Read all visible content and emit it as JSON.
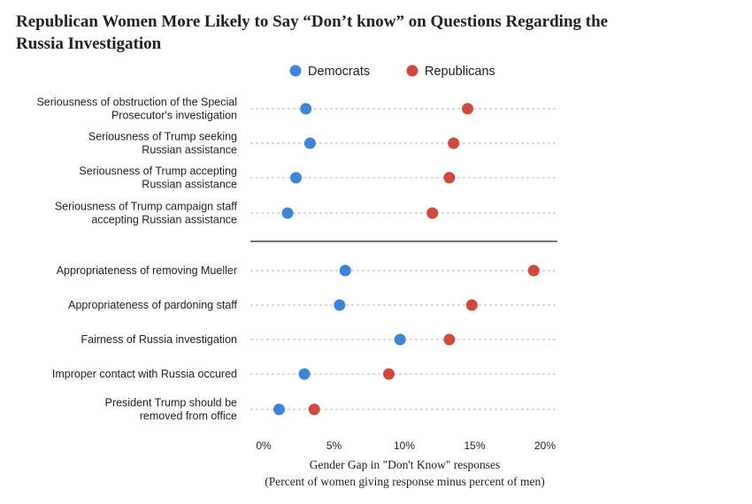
{
  "title": "Republican Women More Likely to Say “Don’t know” on Questions Regarding the Russia Investigation",
  "chart_data": {
    "type": "scatter",
    "subtype": "dot-plot",
    "title": "Republican Women More Likely to Say “Don’t know” on Questions Regarding the Russia Investigation",
    "xlabel": "Gender Gap in \"Don't Know\" responses",
    "xlabel_note": "(Percent of women giving response minus percent of men)",
    "xlim": [
      0,
      20
    ],
    "x_ticks": [
      0,
      5,
      10,
      15,
      20
    ],
    "x_tick_labels": [
      "0%",
      "5%",
      "10%",
      "15%",
      "20%"
    ],
    "legend_position": "top",
    "grid": "horizontal dashed lines per category",
    "groups": [
      {
        "categories": [
          [
            "Seriousness of obstruction of the Special",
            "Prosecutor's investigation"
          ],
          [
            "Seriousness of Trump seeking",
            "Russian assistance"
          ],
          [
            "Seriousness of Trump accepting",
            "Russian assistance"
          ],
          [
            "Seriousness of Trump campaign staff",
            "accepting Russian assistance"
          ]
        ]
      },
      {
        "categories": [
          [
            "Appropriateness of removing Mueller"
          ],
          [
            "Appropriateness of pardoning staff"
          ],
          [
            "Fairness of Russia investigation"
          ],
          [
            "Improper contact with Russia occured"
          ],
          [
            "President Trump should be",
            "removed from office"
          ]
        ]
      }
    ],
    "series": [
      {
        "name": "Democrats",
        "color": "#3d85d8",
        "values": [
          3.0,
          3.3,
          2.3,
          1.7,
          5.8,
          5.4,
          9.7,
          2.9,
          1.1
        ]
      },
      {
        "name": "Republicans",
        "color": "#d2493c",
        "values": [
          14.5,
          13.5,
          13.2,
          12.0,
          19.2,
          14.8,
          13.2,
          8.9,
          3.6
        ]
      }
    ]
  }
}
